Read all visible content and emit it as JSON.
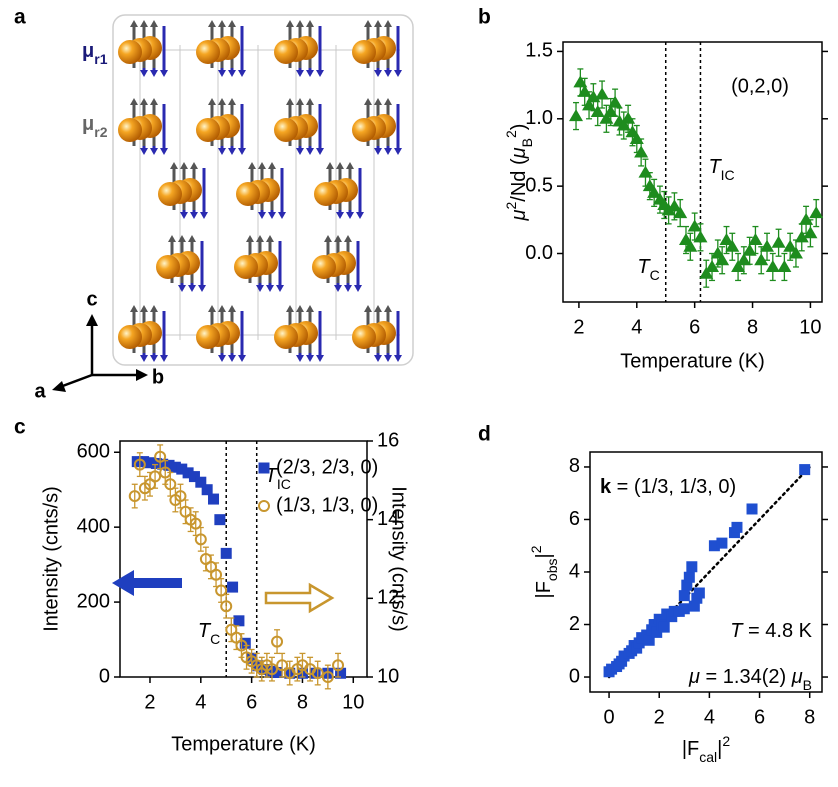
{
  "panel_a": {
    "panel_label": "a",
    "moments": [
      [
        {
          "text": "μ"
        },
        {
          "text": "r1",
          "pos": "sub"
        }
      ],
      [
        {
          "text": "μ"
        },
        {
          "text": "r2",
          "pos": "sub"
        }
      ]
    ],
    "moment_colors": [
      "#1a1a78",
      "#666666"
    ],
    "axis_labels": [
      "c",
      "a",
      "b"
    ]
  },
  "chart_data": [
    {
      "type": "scatter",
      "panel_label": "b",
      "xlabel": "Temperature (K)",
      "ylabel": [
        {
          "text": "μ",
          "pos": "italic"
        },
        {
          "text": "2",
          "pos": "sup"
        },
        {
          "text": "/Nd ("
        },
        {
          "text": "μ",
          "pos": "italic"
        },
        {
          "text": "B",
          "pos": "sub"
        },
        {
          "text": "2",
          "pos": "sup"
        },
        {
          "text": ")"
        }
      ],
      "xlim": [
        1.45,
        10.4
      ],
      "ylim": [
        -0.36,
        1.57
      ],
      "xticks": [
        2,
        4,
        6,
        8,
        10
      ],
      "yticks": [
        {
          "value": 0,
          "label": "0.0"
        },
        {
          "value": 0.5,
          "label": "0.5"
        },
        {
          "value": 1,
          "label": "1.0"
        },
        {
          "value": 1.5,
          "label": "1.5"
        }
      ],
      "series": [
        {
          "color": "#1e8c1e",
          "marker": "triangle",
          "x": [
            1.9,
            2.05,
            2.2,
            2.35,
            2.5,
            2.65,
            2.8,
            2.95,
            3.1,
            3.25,
            3.4,
            3.55,
            3.7,
            3.85,
            4.0,
            4.15,
            4.3,
            4.45,
            4.6,
            4.8,
            4.95,
            5.1,
            5.3,
            5.5,
            5.7,
            5.85,
            6.0,
            6.2,
            6.4,
            6.6,
            6.8,
            6.95,
            7.1,
            7.3,
            7.5,
            7.7,
            7.9,
            8.1,
            8.3,
            8.5,
            8.7,
            8.9,
            9.1,
            9.3,
            9.5,
            9.7,
            9.85,
            10.0,
            10.2
          ],
          "values": [
            1.02,
            1.27,
            1.2,
            1.1,
            1.16,
            1.05,
            1.18,
            1.0,
            1.05,
            1.12,
            0.98,
            0.95,
            1.0,
            0.9,
            0.85,
            0.75,
            0.6,
            0.5,
            0.45,
            0.4,
            0.36,
            0.32,
            0.35,
            0.3,
            0.1,
            0.05,
            0.2,
            0.12,
            -0.15,
            -0.1,
            0.0,
            -0.05,
            0.1,
            0.05,
            -0.1,
            -0.05,
            0.02,
            0.1,
            -0.05,
            0.05,
            -0.1,
            0.08,
            -0.1,
            0.05,
            0.0,
            0.12,
            0.25,
            0.15,
            0.3
          ],
          "errors": [
            0.1,
            0.1,
            0.1,
            0.1,
            0.1,
            0.1,
            0.1,
            0.1,
            0.1,
            0.1,
            0.1,
            0.1,
            0.1,
            0.1,
            0.1,
            0.1,
            0.1,
            0.1,
            0.1,
            0.1,
            0.1,
            0.1,
            0.1,
            0.1,
            0.1,
            0.1,
            0.1,
            0.1,
            0.1,
            0.1,
            0.1,
            0.1,
            0.1,
            0.1,
            0.1,
            0.1,
            0.1,
            0.1,
            0.1,
            0.1,
            0.1,
            0.1,
            0.1,
            0.1,
            0.1,
            0.1,
            0.1,
            0.1,
            0.1
          ]
        }
      ],
      "vlines": [
        {
          "x": 5.0,
          "label": [
            {
              "text": "T",
              "pos": "italic"
            },
            {
              "text": "C",
              "pos": "sub"
            }
          ]
        },
        {
          "x": 6.2,
          "label": [
            {
              "text": "T",
              "pos": "italic"
            },
            {
              "text": "IC",
              "pos": "sub"
            }
          ]
        }
      ],
      "annotations": [
        "(0,2,0)"
      ]
    },
    {
      "type": "scatter",
      "panel_label": "c",
      "xlabel": "Temperature (K)",
      "ylabel": "Intensity (cnts/s)",
      "y2label": "Intensity (cnts/s)",
      "xlim": [
        0.82,
        10.54
      ],
      "ylim": [
        0,
        630
      ],
      "y2lim": [
        10,
        16
      ],
      "xticks": [
        2,
        4,
        6,
        8,
        10
      ],
      "yticks": [
        0,
        200,
        400,
        600
      ],
      "y2ticks": [
        10,
        12,
        14,
        16
      ],
      "series": [
        {
          "name": "(2/3, 2/3, 0)",
          "color": "#1f3fbf",
          "marker": "square",
          "x": [
            1.5,
            1.75,
            2.0,
            2.25,
            2.5,
            2.75,
            3.0,
            3.25,
            3.5,
            3.75,
            4.0,
            4.25,
            4.5,
            4.75,
            5.0,
            5.25,
            5.5,
            5.75,
            6.0,
            6.25,
            6.5,
            6.75,
            7.0,
            7.5,
            8.0,
            8.5,
            9.0,
            9.5
          ],
          "values": [
            575,
            575,
            572,
            570,
            568,
            565,
            560,
            555,
            545,
            535,
            520,
            500,
            475,
            420,
            330,
            240,
            150,
            90,
            50,
            30,
            20,
            15,
            12,
            10,
            10,
            10,
            10,
            10
          ]
        },
        {
          "name": "(1/3, 1/3, 0)",
          "color": "#c8962e",
          "marker": "circle-open",
          "axis": "y2",
          "x": [
            1.4,
            1.6,
            1.8,
            2.0,
            2.2,
            2.4,
            2.6,
            2.8,
            3.0,
            3.2,
            3.4,
            3.6,
            3.8,
            4.0,
            4.2,
            4.4,
            4.6,
            4.8,
            5.0,
            5.2,
            5.4,
            5.6,
            5.8,
            6.0,
            6.2,
            6.4,
            6.6,
            6.8,
            7.0,
            7.2,
            7.5,
            7.8,
            8.0,
            8.3,
            8.6,
            9.0,
            9.4
          ],
          "values": [
            14.6,
            15.4,
            14.8,
            14.9,
            15.1,
            15.6,
            15.2,
            14.9,
            14.5,
            14.6,
            14.2,
            14.0,
            13.9,
            13.5,
            13.0,
            12.8,
            12.6,
            12.2,
            11.8,
            11.2,
            11.0,
            10.8,
            10.5,
            10.4,
            10.3,
            10.2,
            10.3,
            10.2,
            10.9,
            10.3,
            10.1,
            10.2,
            10.3,
            10.2,
            10.1,
            10.0,
            10.3
          ],
          "errors": [
            0.3,
            0.3,
            0.3,
            0.3,
            0.3,
            0.3,
            0.3,
            0.3,
            0.3,
            0.3,
            0.3,
            0.3,
            0.3,
            0.3,
            0.3,
            0.3,
            0.3,
            0.3,
            0.3,
            0.3,
            0.3,
            0.3,
            0.3,
            0.3,
            0.3,
            0.3,
            0.3,
            0.3,
            0.3,
            0.3,
            0.3,
            0.3,
            0.3,
            0.3,
            0.3,
            0.3,
            0.3
          ]
        }
      ],
      "vlines": [
        {
          "x": 5.0,
          "label": [
            {
              "text": "T",
              "pos": "italic"
            },
            {
              "text": "C",
              "pos": "sub"
            }
          ]
        },
        {
          "x": 6.2,
          "label": [
            {
              "text": "T",
              "pos": "italic"
            },
            {
              "text": "IC",
              "pos": "sub"
            }
          ]
        }
      ]
    },
    {
      "type": "scatter",
      "panel_label": "d",
      "xlabel": [
        {
          "text": "|F"
        },
        {
          "text": "cal",
          "pos": "sub"
        },
        {
          "text": "|"
        },
        {
          "text": "2",
          "pos": "sup"
        }
      ],
      "ylabel": [
        {
          "text": "|F"
        },
        {
          "text": "obs",
          "pos": "sub"
        },
        {
          "text": "|"
        },
        {
          "text": "2",
          "pos": "sup"
        }
      ],
      "xlim": [
        -0.76,
        8.49
      ],
      "ylim": [
        -0.57,
        8.57
      ],
      "xticks": [
        0,
        2,
        4,
        6,
        8
      ],
      "yticks": [
        0,
        2,
        4,
        6,
        8
      ],
      "series": [
        {
          "color": "#1f4fd0",
          "marker": "square",
          "x": [
            0,
            0.1,
            0.3,
            0.4,
            0.5,
            0.6,
            0.8,
            0.9,
            1.0,
            1.1,
            1.2,
            1.3,
            1.5,
            1.6,
            1.7,
            1.8,
            1.9,
            2.0,
            2.1,
            2.2,
            2.3,
            2.5,
            2.6,
            2.8,
            3.0,
            3.0,
            3.1,
            3.2,
            3.3,
            3.4,
            3.5,
            3.6,
            4.2,
            4.5,
            5.0,
            5.1,
            5.7,
            7.8
          ],
          "values": [
            0.2,
            0.3,
            0.4,
            0.5,
            0.6,
            0.8,
            0.9,
            1.0,
            1.2,
            1.1,
            1.3,
            1.5,
            1.6,
            1.4,
            1.8,
            2.0,
            1.7,
            2.2,
            2.0,
            1.9,
            2.4,
            2.3,
            2.5,
            2.5,
            2.6,
            3.1,
            3.5,
            3.8,
            4.2,
            2.7,
            3.0,
            3.2,
            5.0,
            5.1,
            5.5,
            5.7,
            6.4,
            7.9
          ]
        }
      ],
      "line": {
        "x": [
          0,
          8
        ],
        "y": [
          0,
          8
        ]
      },
      "annotations": [
        [
          {
            "text": "k",
            "pos": "bold"
          },
          {
            "text": " = (1/3, 1/3, 0)"
          }
        ],
        [
          {
            "text": "T",
            "pos": "italic"
          },
          {
            "text": " = 4.8 K"
          }
        ],
        [
          {
            "text": "μ",
            "pos": "italic"
          },
          {
            "text": " = 1.34(2) "
          },
          {
            "text": "μ",
            "pos": "italic"
          },
          {
            "text": "B",
            "pos": "sub"
          }
        ]
      ]
    }
  ]
}
